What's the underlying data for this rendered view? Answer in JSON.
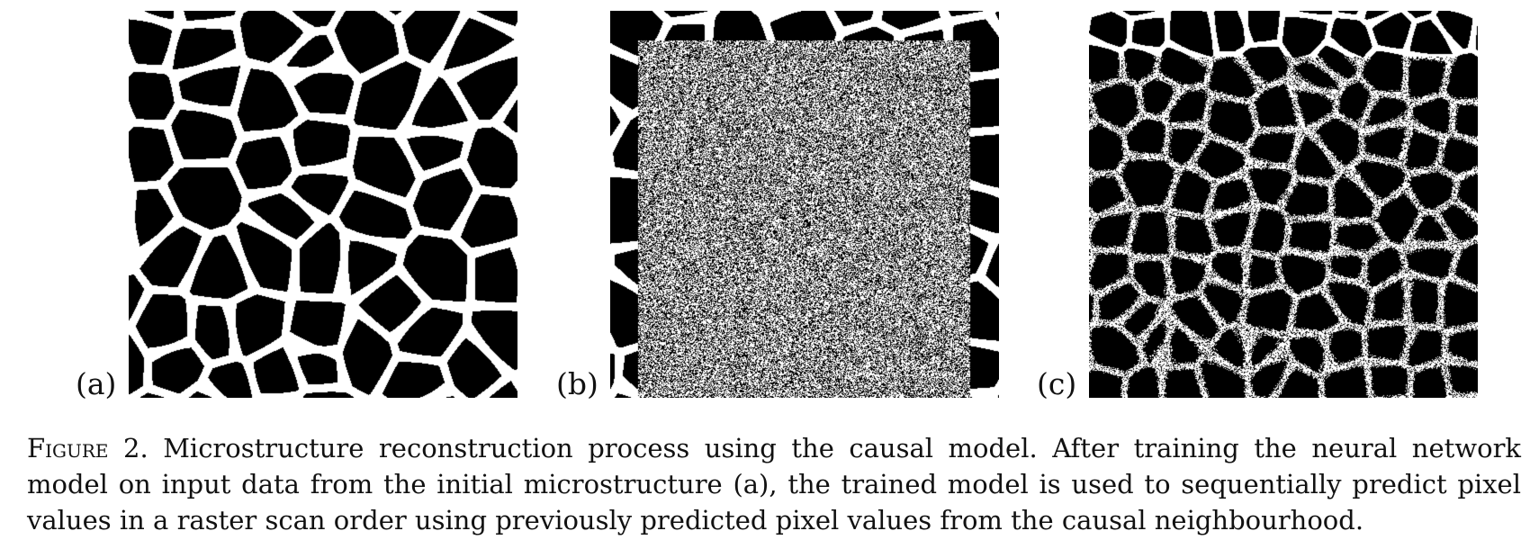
{
  "figure": {
    "panels": [
      {
        "id": "a",
        "label": "(a)"
      },
      {
        "id": "b",
        "label": "(b)"
      },
      {
        "id": "c",
        "label": "(c)"
      }
    ],
    "caption": {
      "label": "Figure 2.",
      "text": "Microstructure reconstruction process using the causal model. After training the neural network model on input data from the initial microstructure (a), the trained model is used to sequentially predict pixel values in a raster scan order using previously predicted pixel values from the causal neighbourhood."
    }
  }
}
